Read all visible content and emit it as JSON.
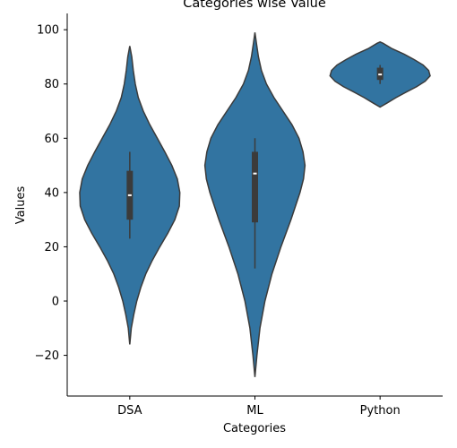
{
  "chart_data": {
    "type": "violin",
    "title": "Categories wise Value",
    "xlabel": "Categories",
    "ylabel": "Values",
    "categories": [
      "DSA",
      "ML",
      "Python"
    ],
    "ylim": [
      -35,
      106
    ],
    "yticks": [
      -20,
      0,
      20,
      40,
      60,
      80,
      100
    ],
    "ytick_labels": [
      "−20",
      "0",
      "20",
      "40",
      "60",
      "80",
      "100"
    ],
    "fill_color": "#3274a1",
    "edge_color": "#3b3b3b",
    "box_color": "#3b3b3b",
    "median_color": "#ffffff",
    "grid": false,
    "violins": [
      {
        "category": "DSA",
        "density": [
          [
            -16,
            0.0
          ],
          [
            -10,
            0.03
          ],
          [
            -5,
            0.08
          ],
          [
            0,
            0.14
          ],
          [
            5,
            0.22
          ],
          [
            10,
            0.32
          ],
          [
            15,
            0.45
          ],
          [
            20,
            0.6
          ],
          [
            25,
            0.76
          ],
          [
            30,
            0.9
          ],
          [
            35,
            0.99
          ],
          [
            40,
            1.0
          ],
          [
            45,
            0.95
          ],
          [
            50,
            0.84
          ],
          [
            55,
            0.7
          ],
          [
            60,
            0.55
          ],
          [
            65,
            0.4
          ],
          [
            70,
            0.27
          ],
          [
            75,
            0.17
          ],
          [
            80,
            0.11
          ],
          [
            85,
            0.07
          ],
          [
            90,
            0.04
          ],
          [
            94,
            0.0
          ]
        ],
        "q1": 30,
        "median": 39,
        "q3": 48,
        "whisker_low": 23,
        "whisker_high": 55
      },
      {
        "category": "ML",
        "density": [
          [
            -28,
            0.0
          ],
          [
            -20,
            0.04
          ],
          [
            -10,
            0.1
          ],
          [
            0,
            0.2
          ],
          [
            10,
            0.34
          ],
          [
            20,
            0.52
          ],
          [
            30,
            0.72
          ],
          [
            40,
            0.9
          ],
          [
            45,
            0.97
          ],
          [
            50,
            1.0
          ],
          [
            55,
            0.96
          ],
          [
            60,
            0.88
          ],
          [
            65,
            0.74
          ],
          [
            70,
            0.56
          ],
          [
            75,
            0.38
          ],
          [
            80,
            0.23
          ],
          [
            85,
            0.13
          ],
          [
            90,
            0.07
          ],
          [
            95,
            0.03
          ],
          [
            99,
            0.0
          ]
        ],
        "q1": 29,
        "median": 47,
        "q3": 55,
        "whisker_low": 12,
        "whisker_high": 60
      },
      {
        "category": "Python",
        "density": [
          [
            71.5,
            0.0
          ],
          [
            73,
            0.14
          ],
          [
            75,
            0.32
          ],
          [
            77,
            0.52
          ],
          [
            79,
            0.73
          ],
          [
            81,
            0.9
          ],
          [
            83,
            1.0
          ],
          [
            85,
            0.97
          ],
          [
            87,
            0.86
          ],
          [
            89,
            0.68
          ],
          [
            91,
            0.48
          ],
          [
            93,
            0.24
          ],
          [
            95,
            0.06
          ],
          [
            95.5,
            0.0
          ]
        ],
        "q1": 81.5,
        "median": 83.5,
        "q3": 86,
        "whisker_low": 80,
        "whisker_high": 87
      }
    ]
  }
}
